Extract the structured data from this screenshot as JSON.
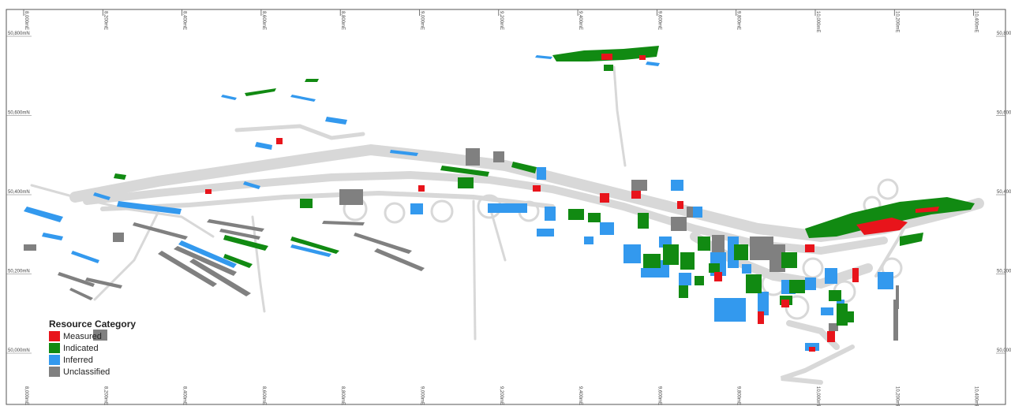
{
  "map": {
    "easting_labels": [
      "8,000mE",
      "8,200mE",
      "8,400mE",
      "8,600mE",
      "8,800mE",
      "9,000mE",
      "9,200mE",
      "9,400mE",
      "9,600mE",
      "9,800mE",
      "10,000mE",
      "10,200mE",
      "10,400mE"
    ],
    "northing_labels_left": [
      "50,800mN",
      "50,600mN",
      "50,400mN",
      "50,200mN",
      "50,000mN"
    ],
    "northing_labels_right": [
      "50,800",
      "50,600",
      "50,400",
      "50,200",
      "50,000"
    ]
  },
  "legend": {
    "title": "Resource Category",
    "items": [
      {
        "label": "Measured",
        "color": "#e8141b"
      },
      {
        "label": "Indicated",
        "color": "#118a12"
      },
      {
        "label": "Inferred",
        "color": "#3399ee"
      },
      {
        "label": "Unclassified",
        "color": "#808080"
      }
    ]
  },
  "colors": {
    "development": "#d8d8d8",
    "frame": "#555555"
  }
}
